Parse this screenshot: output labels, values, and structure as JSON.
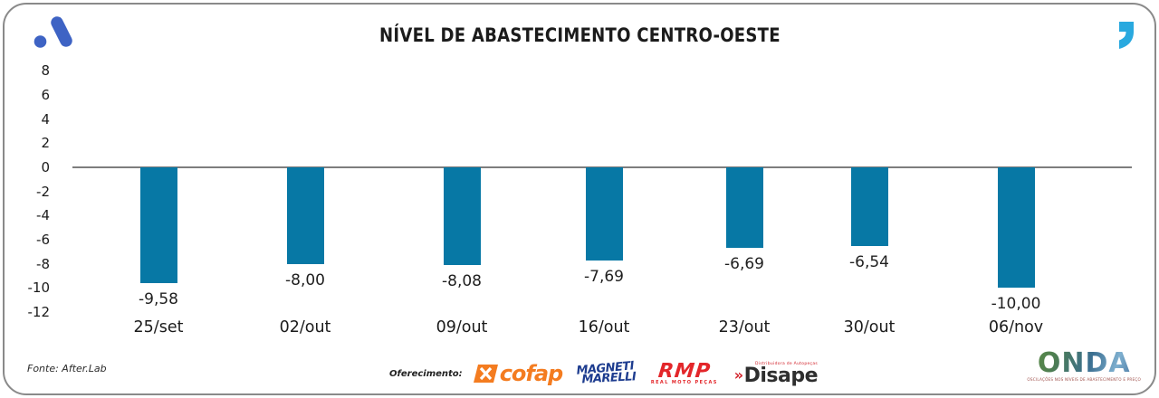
{
  "colors": {
    "bar": "#0778a5",
    "zero_line": "#7d7d7d",
    "afterlab_blue": "#3e63c4",
    "quote_blue": "#29a9df",
    "cofap_orange": "#f47c20",
    "magneti_navy": "#1d3c8f",
    "rmp_red": "#e3262a",
    "disape_dark": "#2e2e2e",
    "disape_red": "#d2222a"
  },
  "chart_data": {
    "type": "bar",
    "title": "NÍVEL DE ABASTECIMENTO CENTRO-OESTE",
    "categories": [
      "25/set",
      "02/out",
      "09/out",
      "16/out",
      "23/out",
      "30/out",
      "06/nov"
    ],
    "values": [
      -9.58,
      -8.0,
      -8.08,
      -7.69,
      -6.69,
      -6.54,
      -10.0
    ],
    "value_labels": [
      "-9,58",
      "-8,00",
      "-8,08",
      "-7,69",
      "-6,69",
      "-6,54",
      "-10,00"
    ],
    "y_ticks": [
      8,
      6,
      4,
      2,
      0,
      -2,
      -4,
      -6,
      -8,
      -10,
      -12
    ],
    "ylim": [
      -12,
      8
    ],
    "xlabel": "",
    "ylabel": "",
    "grid": false,
    "legend": false,
    "bar_color": "#0778a5",
    "zero_line_color": "#7d7d7d"
  },
  "footer": {
    "fonte": "Fonte: After.Lab",
    "oferecimento_label": "Oferecimento:",
    "sponsors": [
      {
        "name": "cofap"
      },
      {
        "line1": "MAGNETI",
        "line2": "MARELLI"
      },
      {
        "name": "RMP",
        "subtitle": "REAL MOTO PEÇAS"
      },
      {
        "name": "Disape",
        "chevrons": "»",
        "tagline": "Distribuidora de Autopeças"
      }
    ],
    "onda": {
      "name": "ONDA",
      "tagline": "OSCILAÇÕES NOS NÍVEIS DE ABASTECIMENTO E PREÇO"
    }
  }
}
